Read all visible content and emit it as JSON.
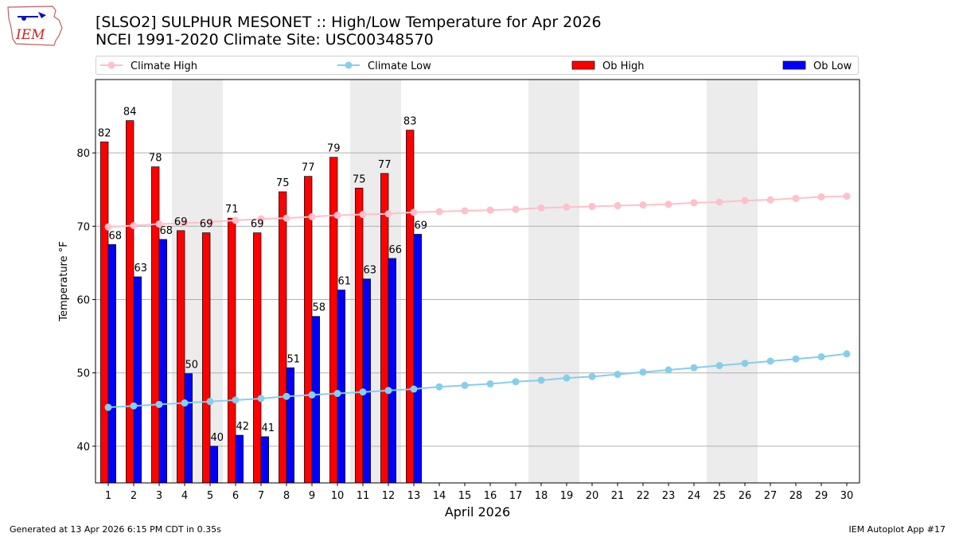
{
  "header": {
    "title_line1": "[SLSO2] SULPHUR MESONET :: High/Low Temperature for Apr 2026",
    "title_line2": "NCEI 1991-2020 Climate Site: USC00348570",
    "logo_text": "IEM"
  },
  "footer": {
    "left": "Generated at 13 Apr 2026 6:15 PM CDT in 0.35s",
    "right": "IEM Autoplot App #17"
  },
  "colors": {
    "ob_high": "#ff0000",
    "ob_low": "#0000ff",
    "climate_high": "#ffc0cb",
    "climate_low": "#87ceeb",
    "weekend_shade": "#ececec",
    "grid": "#b0b0b0"
  },
  "chart_data": {
    "type": "bar",
    "xlabel": "April 2026",
    "ylabel": "Temperature °F",
    "ylim": [
      35,
      90
    ],
    "xlim": [
      0.5,
      30.5
    ],
    "yticks": [
      40,
      50,
      60,
      70,
      80
    ],
    "days": [
      1,
      2,
      3,
      4,
      5,
      6,
      7,
      8,
      9,
      10,
      11,
      12,
      13,
      14,
      15,
      16,
      17,
      18,
      19,
      20,
      21,
      22,
      23,
      24,
      25,
      26,
      27,
      28,
      29,
      30
    ],
    "weekend_days": [
      4,
      5,
      11,
      12,
      18,
      19,
      25,
      26
    ],
    "legend_placement": "top, above plot",
    "grid": "horizontal",
    "series": [
      {
        "name": "Climate High",
        "kind": "line",
        "values": [
          69.9,
          70.1,
          70.3,
          70.4,
          70.6,
          70.8,
          71.0,
          71.1,
          71.3,
          71.5,
          71.6,
          71.7,
          71.9,
          72.0,
          72.1,
          72.2,
          72.3,
          72.5,
          72.6,
          72.7,
          72.8,
          72.9,
          73.0,
          73.2,
          73.3,
          73.5,
          73.6,
          73.8,
          74.0,
          74.1
        ]
      },
      {
        "name": "Climate Low",
        "kind": "line",
        "values": [
          45.3,
          45.5,
          45.7,
          45.9,
          46.1,
          46.3,
          46.5,
          46.8,
          47.0,
          47.2,
          47.4,
          47.6,
          47.8,
          48.1,
          48.3,
          48.5,
          48.8,
          49.0,
          49.3,
          49.5,
          49.8,
          50.1,
          50.4,
          50.7,
          51.0,
          51.3,
          51.6,
          51.9,
          52.2,
          52.6
        ]
      },
      {
        "name": "Ob High",
        "kind": "bar",
        "values": [
          81.5,
          84.4,
          78.1,
          69.4,
          69.1,
          71.1,
          69.1,
          74.7,
          76.8,
          79.4,
          75.2,
          77.2,
          83.1
        ],
        "labels": [
          "82",
          "84",
          "78",
          "69",
          "69",
          "71",
          "69",
          "75",
          "77",
          "79",
          "75",
          "77",
          "83"
        ]
      },
      {
        "name": "Ob Low",
        "kind": "bar",
        "values": [
          67.5,
          63.1,
          68.2,
          49.9,
          40.0,
          41.5,
          41.3,
          50.7,
          57.7,
          61.3,
          62.8,
          65.6,
          68.9
        ],
        "labels": [
          "68",
          "63",
          "68",
          "50",
          "40",
          "42",
          "41",
          "51",
          "58",
          "61",
          "63",
          "66",
          "69"
        ]
      }
    ]
  }
}
